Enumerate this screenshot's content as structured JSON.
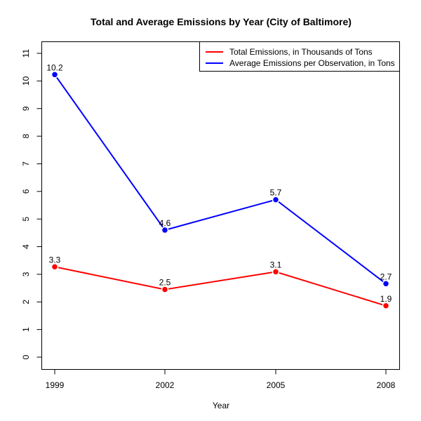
{
  "chart_data": {
    "type": "line",
    "title": "Total and Average Emissions by Year (City of Baltimore)",
    "xlabel": "Year",
    "ylabel": "",
    "categories": [
      "1999",
      "2002",
      "2005",
      "2008"
    ],
    "ylim": [
      0,
      11
    ],
    "yticks": [
      0,
      1,
      2,
      3,
      4,
      5,
      6,
      7,
      8,
      9,
      10,
      11
    ],
    "grid": false,
    "legend_position": "top-right",
    "series": [
      {
        "name": "Total Emissions, in Thousands of Tons",
        "color": "#ff0000",
        "values": [
          3.27,
          2.45,
          3.09,
          1.86
        ],
        "labels": [
          "3.3",
          "2.5",
          "3.1",
          "1.9"
        ]
      },
      {
        "name": "Average Emissions per Observation, in Tons",
        "color": "#0000ff",
        "values": [
          10.23,
          4.6,
          5.7,
          2.66
        ],
        "labels": [
          "10.2",
          "4.6",
          "5.7",
          "2.7"
        ]
      }
    ]
  }
}
